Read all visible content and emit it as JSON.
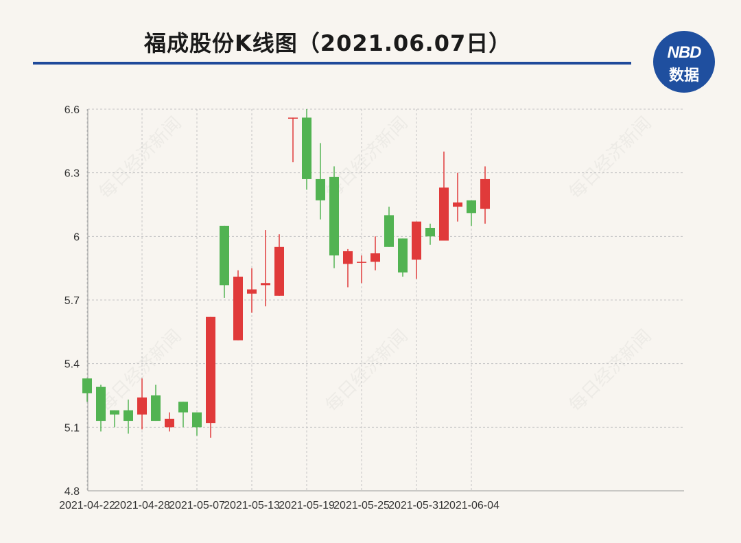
{
  "title": "福成股份K线图（2021.06.07日）",
  "logo": {
    "line1": "NBD",
    "line2": "数据",
    "color": "#1f4f9f"
  },
  "watermark": "每日经济新闻",
  "colors": {
    "up": "#e03a3a",
    "down": "#52b352",
    "grid": "#c4c4c4",
    "axis": "#9a9a9a",
    "title_rule": "#1f4a9a"
  },
  "chart_data": {
    "type": "candlestick",
    "title": "福成股份K线图（2021.06.07日）",
    "ylim": [
      4.8,
      6.6
    ],
    "y_ticks": [
      "4.8",
      "5.1",
      "5.4",
      "5.7",
      "6",
      "6.3",
      "6.6"
    ],
    "x_ticks": [
      "2021-04-22",
      "2021-04-28",
      "2021-05-07",
      "2021-05-13",
      "2021-05-19",
      "2021-05-25",
      "2021-05-31",
      "2021-06-04"
    ],
    "candles": [
      {
        "date": "2021-04-22",
        "open": 5.33,
        "high": 5.33,
        "low": 5.22,
        "close": 5.26
      },
      {
        "date": "2021-04-23",
        "open": 5.29,
        "high": 5.3,
        "low": 5.08,
        "close": 5.13
      },
      {
        "date": "2021-04-26",
        "open": 5.18,
        "high": 5.18,
        "low": 5.1,
        "close": 5.16
      },
      {
        "date": "2021-04-27",
        "open": 5.18,
        "high": 5.23,
        "low": 5.07,
        "close": 5.13
      },
      {
        "date": "2021-04-28",
        "open": 5.16,
        "high": 5.33,
        "low": 5.09,
        "close": 5.24
      },
      {
        "date": "2021-04-29",
        "open": 5.25,
        "high": 5.3,
        "low": 5.13,
        "close": 5.13
      },
      {
        "date": "2021-04-30",
        "open": 5.1,
        "high": 5.17,
        "low": 5.08,
        "close": 5.14
      },
      {
        "date": "2021-05-06",
        "open": 5.22,
        "high": 5.22,
        "low": 5.1,
        "close": 5.17
      },
      {
        "date": "2021-05-07",
        "open": 5.17,
        "high": 5.17,
        "low": 5.06,
        "close": 5.1
      },
      {
        "date": "2021-05-10",
        "open": 5.12,
        "high": 5.62,
        "low": 5.05,
        "close": 5.62
      },
      {
        "date": "2021-05-11",
        "open": 6.05,
        "high": 6.05,
        "low": 5.71,
        "close": 5.77
      },
      {
        "date": "2021-05-12",
        "open": 5.51,
        "high": 5.84,
        "low": 5.51,
        "close": 5.81
      },
      {
        "date": "2021-05-13",
        "open": 5.73,
        "high": 5.85,
        "low": 5.64,
        "close": 5.75
      },
      {
        "date": "2021-05-14",
        "open": 5.77,
        "high": 6.03,
        "low": 5.67,
        "close": 5.78
      },
      {
        "date": "2021-05-17",
        "open": 5.72,
        "high": 6.01,
        "low": 5.72,
        "close": 5.95
      },
      {
        "date": "2021-05-18",
        "open": 6.56,
        "high": 6.56,
        "low": 6.35,
        "close": 6.56
      },
      {
        "date": "2021-05-19",
        "open": 6.56,
        "high": 6.6,
        "low": 6.22,
        "close": 6.27
      },
      {
        "date": "2021-05-20",
        "open": 6.27,
        "high": 6.44,
        "low": 6.08,
        "close": 6.17
      },
      {
        "date": "2021-05-21",
        "open": 6.28,
        "high": 6.33,
        "low": 5.85,
        "close": 5.91
      },
      {
        "date": "2021-05-24",
        "open": 5.87,
        "high": 5.94,
        "low": 5.76,
        "close": 5.93
      },
      {
        "date": "2021-05-25",
        "open": 5.88,
        "high": 5.91,
        "low": 5.78,
        "close": 5.88
      },
      {
        "date": "2021-05-26",
        "open": 5.88,
        "high": 6.0,
        "low": 5.84,
        "close": 5.92
      },
      {
        "date": "2021-05-27",
        "open": 6.1,
        "high": 6.14,
        "low": 5.95,
        "close": 5.95
      },
      {
        "date": "2021-05-28",
        "open": 5.99,
        "high": 5.99,
        "low": 5.81,
        "close": 5.83
      },
      {
        "date": "2021-05-31",
        "open": 5.89,
        "high": 6.07,
        "low": 5.8,
        "close": 6.07
      },
      {
        "date": "2021-06-01",
        "open": 6.04,
        "high": 6.06,
        "low": 5.96,
        "close": 6.0
      },
      {
        "date": "2021-06-02",
        "open": 5.98,
        "high": 6.4,
        "low": 5.98,
        "close": 6.23
      },
      {
        "date": "2021-06-03",
        "open": 6.14,
        "high": 6.3,
        "low": 6.07,
        "close": 6.16
      },
      {
        "date": "2021-06-04",
        "open": 6.17,
        "high": 6.17,
        "low": 6.05,
        "close": 6.11
      },
      {
        "date": "2021-06-07",
        "open": 6.13,
        "high": 6.33,
        "low": 6.06,
        "close": 6.27
      }
    ]
  }
}
